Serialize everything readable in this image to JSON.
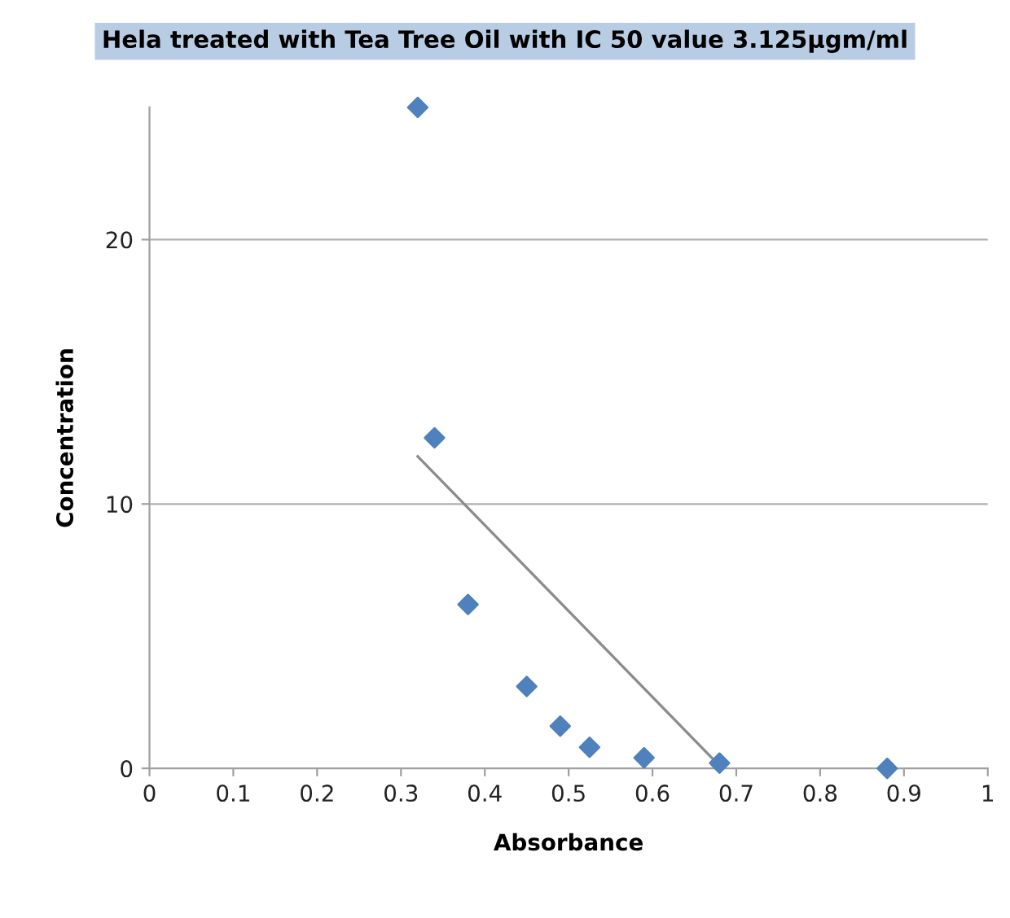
{
  "chart_data": {
    "type": "scatter",
    "title": "Hela treated with Tea Tree Oil with IC 50 value 3.125μgm/ml",
    "xlabel": "Absorbance",
    "ylabel": "Concentration",
    "series": [
      {
        "color": "#4f81bd",
        "marker": "diamond",
        "x": [
          0.32,
          0.34,
          0.38,
          0.45,
          0.49,
          0.525,
          0.59,
          0.68,
          0.88
        ],
        "values": [
          25,
          12.5,
          6.2,
          3.1,
          1.6,
          0.8,
          0.4,
          0.2,
          0
        ]
      },
      {
        "type": "line",
        "color": "#8c8c8c",
        "marker": "none",
        "x": [
          0.32,
          0.68
        ],
        "values": [
          11.8,
          0.1
        ]
      }
    ],
    "xlim": [
      0,
      1
    ],
    "xticks": [
      0,
      0.1,
      0.2,
      0.3,
      0.4,
      0.5,
      0.6,
      0.7,
      0.8,
      0.9,
      1
    ],
    "ylim": [
      0,
      25
    ],
    "yticks": [
      0,
      10,
      20
    ],
    "grid": "y",
    "legend": false
  }
}
